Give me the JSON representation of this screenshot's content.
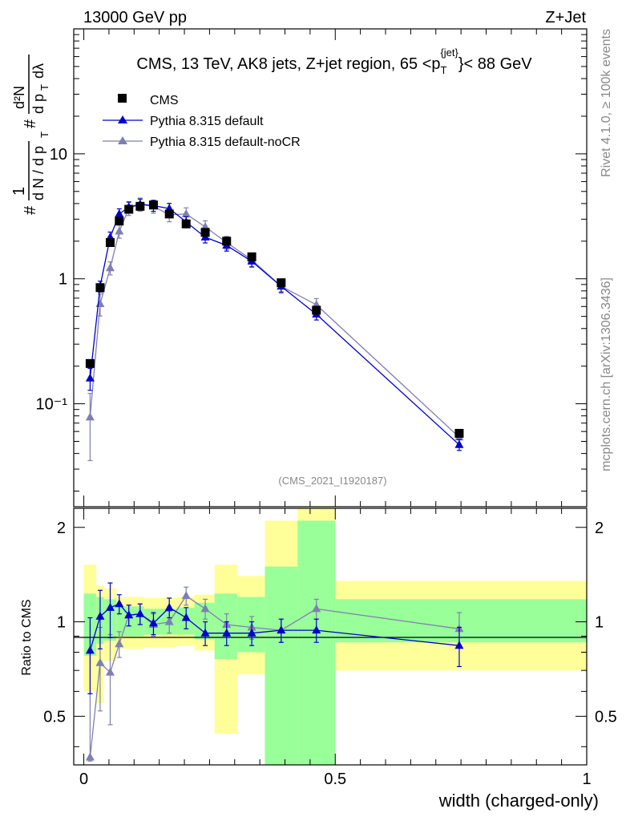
{
  "header": {
    "left": "13000 GeV pp",
    "right": "Z+Jet"
  },
  "side": {
    "rivet": "Rivet 4.1.0, ≥ 100k events",
    "mcplots": "mcplots.cern.ch [arXiv:1306.3436]"
  },
  "legend": {
    "cms": "CMS",
    "def": "Pythia 8.315 default",
    "nocr": "Pythia 8.315 default-noCR"
  },
  "colors": {
    "cms": "#000000",
    "def": "#0000cc",
    "nocr": "#7f7fb2",
    "band_green": "#99ff99",
    "band_yellow": "#ffff99"
  },
  "chart_data": [
    {
      "type": "scatter",
      "panel": "main",
      "title": "CMS, 13 TeV, AK8 jets, Z+jet region, 65 < p_T^jet < 88 GeV",
      "watermark": "(CMS_2021_I1920187)",
      "ylabel": "1/dN/dp_T  d²N/dp_T dλ",
      "yscale": "log",
      "ylim": [
        0.015,
        100
      ],
      "xlim": [
        -0.02,
        1.0
      ],
      "yticks": [
        0.1,
        1,
        10
      ],
      "ytick_labels": [
        "10⁻¹",
        "1",
        "10"
      ],
      "x": [
        0.0125,
        0.0325,
        0.0525,
        0.0705,
        0.0895,
        0.112,
        0.1385,
        0.17,
        0.2035,
        0.2415,
        0.284,
        0.334,
        0.3925,
        0.4625,
        0.7465
      ],
      "series": [
        {
          "name": "CMS",
          "values": [
            0.21,
            0.85,
            1.95,
            2.9,
            3.6,
            3.8,
            3.9,
            3.3,
            2.75,
            2.35,
            2.0,
            1.5,
            0.93,
            0.56,
            0.058
          ]
        },
        {
          "name": "Pythia 8.315 default",
          "values": [
            0.16,
            0.87,
            2.15,
            3.3,
            3.75,
            3.95,
            3.85,
            3.65,
            2.85,
            2.15,
            1.85,
            1.38,
            0.87,
            0.52,
            0.047
          ]
        },
        {
          "name": "Pythia 8.315 default-noCR",
          "values": [
            0.078,
            0.63,
            1.22,
            2.4,
            3.65,
            3.95,
            3.8,
            3.25,
            3.3,
            2.6,
            1.95,
            1.42,
            0.87,
            0.62,
            0.054
          ]
        }
      ]
    },
    {
      "type": "scatter",
      "panel": "ratio",
      "ylabel": "Ratio to CMS",
      "xlabel": "width (charged-only)",
      "ylim": [
        0.35,
        2.3
      ],
      "xlim": [
        -0.02,
        1.0
      ],
      "yticks": [
        0.5,
        1,
        2
      ],
      "ytick_labels": [
        "0.5",
        "1",
        "2"
      ],
      "xticks": [
        0,
        0.5,
        1
      ],
      "xtick_labels": [
        "0",
        "0.5",
        "1"
      ],
      "x": [
        0.0125,
        0.0325,
        0.0525,
        0.0705,
        0.0895,
        0.112,
        0.1385,
        0.17,
        0.2035,
        0.2415,
        0.284,
        0.334,
        0.3925,
        0.4625,
        0.7465
      ],
      "series": [
        {
          "name": "Pythia 8.315 default",
          "values": [
            0.81,
            1.04,
            1.11,
            1.14,
            1.05,
            1.06,
            0.99,
            1.11,
            1.03,
            0.92,
            0.92,
            0.92,
            0.94,
            0.94,
            0.84
          ]
        },
        {
          "name": "Pythia 8.315 default-noCR",
          "values": [
            0.37,
            0.74,
            0.69,
            0.85,
            1.05,
            1.06,
            0.98,
            1.0,
            1.21,
            1.1,
            0.98,
            0.96,
            0.94,
            1.1,
            0.95
          ]
        }
      ],
      "bands": [
        {
          "x0": 0.0,
          "x1": 0.025,
          "green": [
            0.78,
            1.23
          ],
          "yellow": [
            0.6,
            1.52
          ]
        },
        {
          "x0": 0.025,
          "x1": 0.04,
          "green": [
            0.85,
            1.2
          ],
          "yellow": [
            0.55,
            1.3
          ]
        },
        {
          "x0": 0.04,
          "x1": 0.065,
          "green": [
            0.87,
            1.18
          ],
          "yellow": [
            0.75,
            1.28
          ]
        },
        {
          "x0": 0.065,
          "x1": 0.12,
          "green": [
            0.9,
            1.12
          ],
          "yellow": [
            0.82,
            1.2
          ]
        },
        {
          "x0": 0.12,
          "x1": 0.185,
          "green": [
            0.91,
            1.1
          ],
          "yellow": [
            0.83,
            1.19
          ]
        },
        {
          "x0": 0.185,
          "x1": 0.22,
          "green": [
            0.91,
            1.11
          ],
          "yellow": [
            0.84,
            1.2
          ]
        },
        {
          "x0": 0.22,
          "x1": 0.26,
          "green": [
            0.88,
            1.15
          ],
          "yellow": [
            0.81,
            1.22
          ]
        },
        {
          "x0": 0.26,
          "x1": 0.305,
          "green": [
            0.76,
            1.23
          ],
          "yellow": [
            0.44,
            1.52
          ]
        },
        {
          "x0": 0.305,
          "x1": 0.36,
          "green": [
            0.8,
            1.2
          ],
          "yellow": [
            0.68,
            1.4
          ]
        },
        {
          "x0": 0.36,
          "x1": 0.425,
          "green": [
            0.35,
            1.5
          ],
          "yellow": [
            0.35,
            2.1
          ]
        },
        {
          "x0": 0.425,
          "x1": 0.5,
          "green": [
            0.35,
            2.1
          ],
          "yellow": [
            0.35,
            2.3
          ]
        },
        {
          "x0": 0.5,
          "x1": 1.0,
          "green": [
            0.86,
            1.18
          ],
          "yellow": [
            0.7,
            1.35
          ]
        }
      ]
    }
  ]
}
